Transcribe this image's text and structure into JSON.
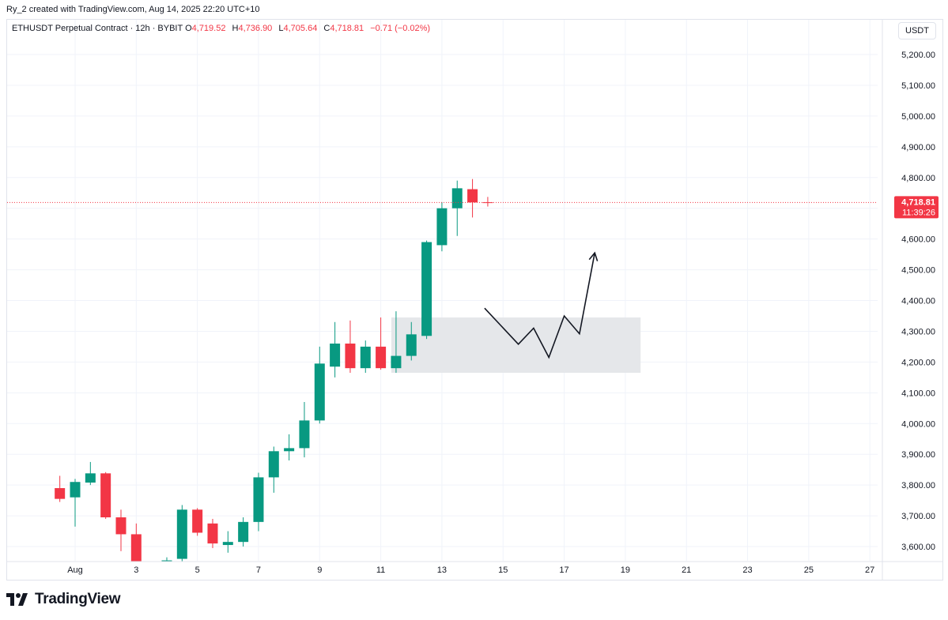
{
  "header": {
    "credit": "Ry_2 created with TradingView.com, Aug 14, 2025 22:20 UTC+10"
  },
  "legend": {
    "symbol": "ETHUSDT Perpetual Contract · 12h · BYBIT",
    "open_label": "O",
    "open": "4,719.52",
    "high_label": "H",
    "high": "4,736.90",
    "low_label": "L",
    "low": "4,705.64",
    "close_label": "C",
    "close": "4,718.81",
    "change": "−0.71 (−0.02%)"
  },
  "price_axis": {
    "currency": "USDT",
    "last_price": "4,718.81",
    "countdown": "11:39:26"
  },
  "brand": {
    "name": "TradingView",
    "icon": "tradingview-logo-icon"
  },
  "colors": {
    "up": "#089981",
    "down": "#f23645",
    "zone": "#e5e7ea",
    "grid": "#f0f3fa",
    "text": "#131722"
  },
  "chart_data": {
    "type": "candlestick",
    "timeframe": "12h",
    "x_tick_labels": [
      "Aug",
      "3",
      "5",
      "7",
      "9",
      "11",
      "13",
      "15",
      "17",
      "19",
      "21",
      "23",
      "25",
      "27"
    ],
    "y_tick_labels": [
      "3,600.00",
      "3,700.00",
      "3,800.00",
      "3,900.00",
      "4,000.00",
      "4,100.00",
      "4,200.00",
      "4,300.00",
      "4,400.00",
      "4,500.00",
      "4,600.00",
      "4,700.00",
      "4,800.00",
      "4,900.00",
      "5,000.00",
      "5,100.00",
      "5,200.00"
    ],
    "ylim": [
      3560,
      5230
    ],
    "last_price": 4718.81,
    "candles": [
      {
        "date": "2025-07-31 12:00",
        "o": 3790,
        "h": 3830,
        "l": 3745,
        "c": 3755
      },
      {
        "date": "2025-08-01 00:00",
        "o": 3760,
        "h": 3820,
        "l": 3665,
        "c": 3810
      },
      {
        "date": "2025-08-01 12:00",
        "o": 3808,
        "h": 3875,
        "l": 3800,
        "c": 3838
      },
      {
        "date": "2025-08-02 00:00",
        "o": 3838,
        "h": 3842,
        "l": 3690,
        "c": 3695
      },
      {
        "date": "2025-08-02 12:00",
        "o": 3695,
        "h": 3720,
        "l": 3585,
        "c": 3640
      },
      {
        "date": "2025-08-03 00:00",
        "o": 3640,
        "h": 3675,
        "l": 3545,
        "c": 3550
      },
      {
        "date": "2025-08-04 00:00",
        "o": 3550,
        "h": 3565,
        "l": 3535,
        "c": 3555
      },
      {
        "date": "2025-08-04 12:00",
        "o": 3560,
        "h": 3735,
        "l": 3545,
        "c": 3720
      },
      {
        "date": "2025-08-05 00:00",
        "o": 3720,
        "h": 3725,
        "l": 3635,
        "c": 3645
      },
      {
        "date": "2025-08-05 12:00",
        "o": 3675,
        "h": 3690,
        "l": 3595,
        "c": 3610
      },
      {
        "date": "2025-08-06 00:00",
        "o": 3605,
        "h": 3650,
        "l": 3580,
        "c": 3615
      },
      {
        "date": "2025-08-06 12:00",
        "o": 3615,
        "h": 3695,
        "l": 3600,
        "c": 3680
      },
      {
        "date": "2025-08-07 00:00",
        "o": 3680,
        "h": 3840,
        "l": 3650,
        "c": 3825
      },
      {
        "date": "2025-08-07 12:00",
        "o": 3825,
        "h": 3925,
        "l": 3775,
        "c": 3910
      },
      {
        "date": "2025-08-08 00:00",
        "o": 3910,
        "h": 3965,
        "l": 3880,
        "c": 3920
      },
      {
        "date": "2025-08-08 12:00",
        "o": 3920,
        "h": 4070,
        "l": 3890,
        "c": 4010
      },
      {
        "date": "2025-08-09 00:00",
        "o": 4010,
        "h": 4250,
        "l": 4000,
        "c": 4195
      },
      {
        "date": "2025-08-09 12:00",
        "o": 4185,
        "h": 4330,
        "l": 4150,
        "c": 4260
      },
      {
        "date": "2025-08-10 00:00",
        "o": 4260,
        "h": 4335,
        "l": 4165,
        "c": 4180
      },
      {
        "date": "2025-08-10 12:00",
        "o": 4180,
        "h": 4270,
        "l": 4165,
        "c": 4250
      },
      {
        "date": "2025-08-11 00:00",
        "o": 4250,
        "h": 4345,
        "l": 4175,
        "c": 4180
      },
      {
        "date": "2025-08-11 12:00",
        "o": 4180,
        "h": 4365,
        "l": 4165,
        "c": 4220
      },
      {
        "date": "2025-08-12 00:00",
        "o": 4220,
        "h": 4330,
        "l": 4205,
        "c": 4290
      },
      {
        "date": "2025-08-12 12:00",
        "o": 4285,
        "h": 4595,
        "l": 4275,
        "c": 4590
      },
      {
        "date": "2025-08-13 00:00",
        "o": 4580,
        "h": 4720,
        "l": 4560,
        "c": 4700
      },
      {
        "date": "2025-08-13 12:00",
        "o": 4700,
        "h": 4790,
        "l": 4610,
        "c": 4765
      },
      {
        "date": "2025-08-14 00:00",
        "o": 4762,
        "h": 4795,
        "l": 4670,
        "c": 4719
      },
      {
        "date": "2025-08-14 12:00",
        "o": 4719.52,
        "h": 4736.9,
        "l": 4705.64,
        "c": 4718.81
      }
    ],
    "annotations": {
      "zone": {
        "type": "rectangle",
        "from_date": "2025-08-11 12:00",
        "to_date": "2025-08-19 12:00",
        "y_low": 4165,
        "y_high": 4345
      },
      "projection": {
        "type": "path",
        "points": [
          {
            "date": "2025-08-14 12:00",
            "y": 4375
          },
          {
            "date": "2025-08-15 12:00",
            "y": 4258
          },
          {
            "date": "2025-08-16 00:00",
            "y": 4310
          },
          {
            "date": "2025-08-16 12:00",
            "y": 4215
          },
          {
            "date": "2025-08-17 00:00",
            "y": 4350
          },
          {
            "date": "2025-08-17 12:00",
            "y": 4292
          },
          {
            "date": "2025-08-18 00:00",
            "y": 4555
          }
        ],
        "arrow_end": true
      }
    }
  }
}
